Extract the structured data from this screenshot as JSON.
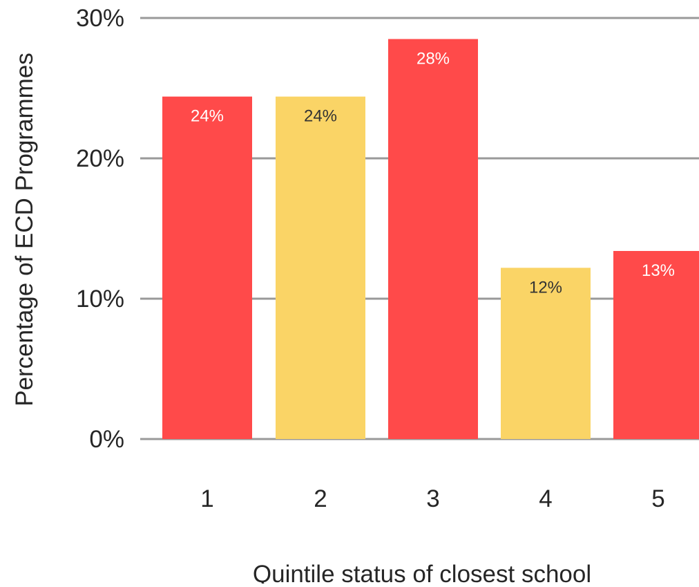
{
  "chart_data": {
    "type": "bar",
    "title": "",
    "xlabel": "Quintile status of closest school",
    "ylabel": "Percentage of ECD Programmes",
    "categories": [
      "1",
      "2",
      "3",
      "4",
      "5"
    ],
    "values": [
      24.4,
      24.4,
      28.5,
      12.2,
      13.4
    ],
    "data_labels": [
      "24%",
      "24%",
      "28%",
      "12%",
      "13%"
    ],
    "ylim": [
      0,
      30
    ],
    "yticks": [
      0,
      10,
      20,
      30
    ],
    "ytick_labels": [
      "0%",
      "10%",
      "20%",
      "30%"
    ],
    "grid": true,
    "legend": "none",
    "colors": {
      "bars": [
        "#FF4A4A",
        "#FAD466",
        "#FF4A4A",
        "#FAD466",
        "#FF4A4A"
      ],
      "labels": [
        "#FFFFFF",
        "#333333",
        "#FFFFFF",
        "#333333",
        "#FFFFFF"
      ],
      "grid": "#999999"
    }
  }
}
